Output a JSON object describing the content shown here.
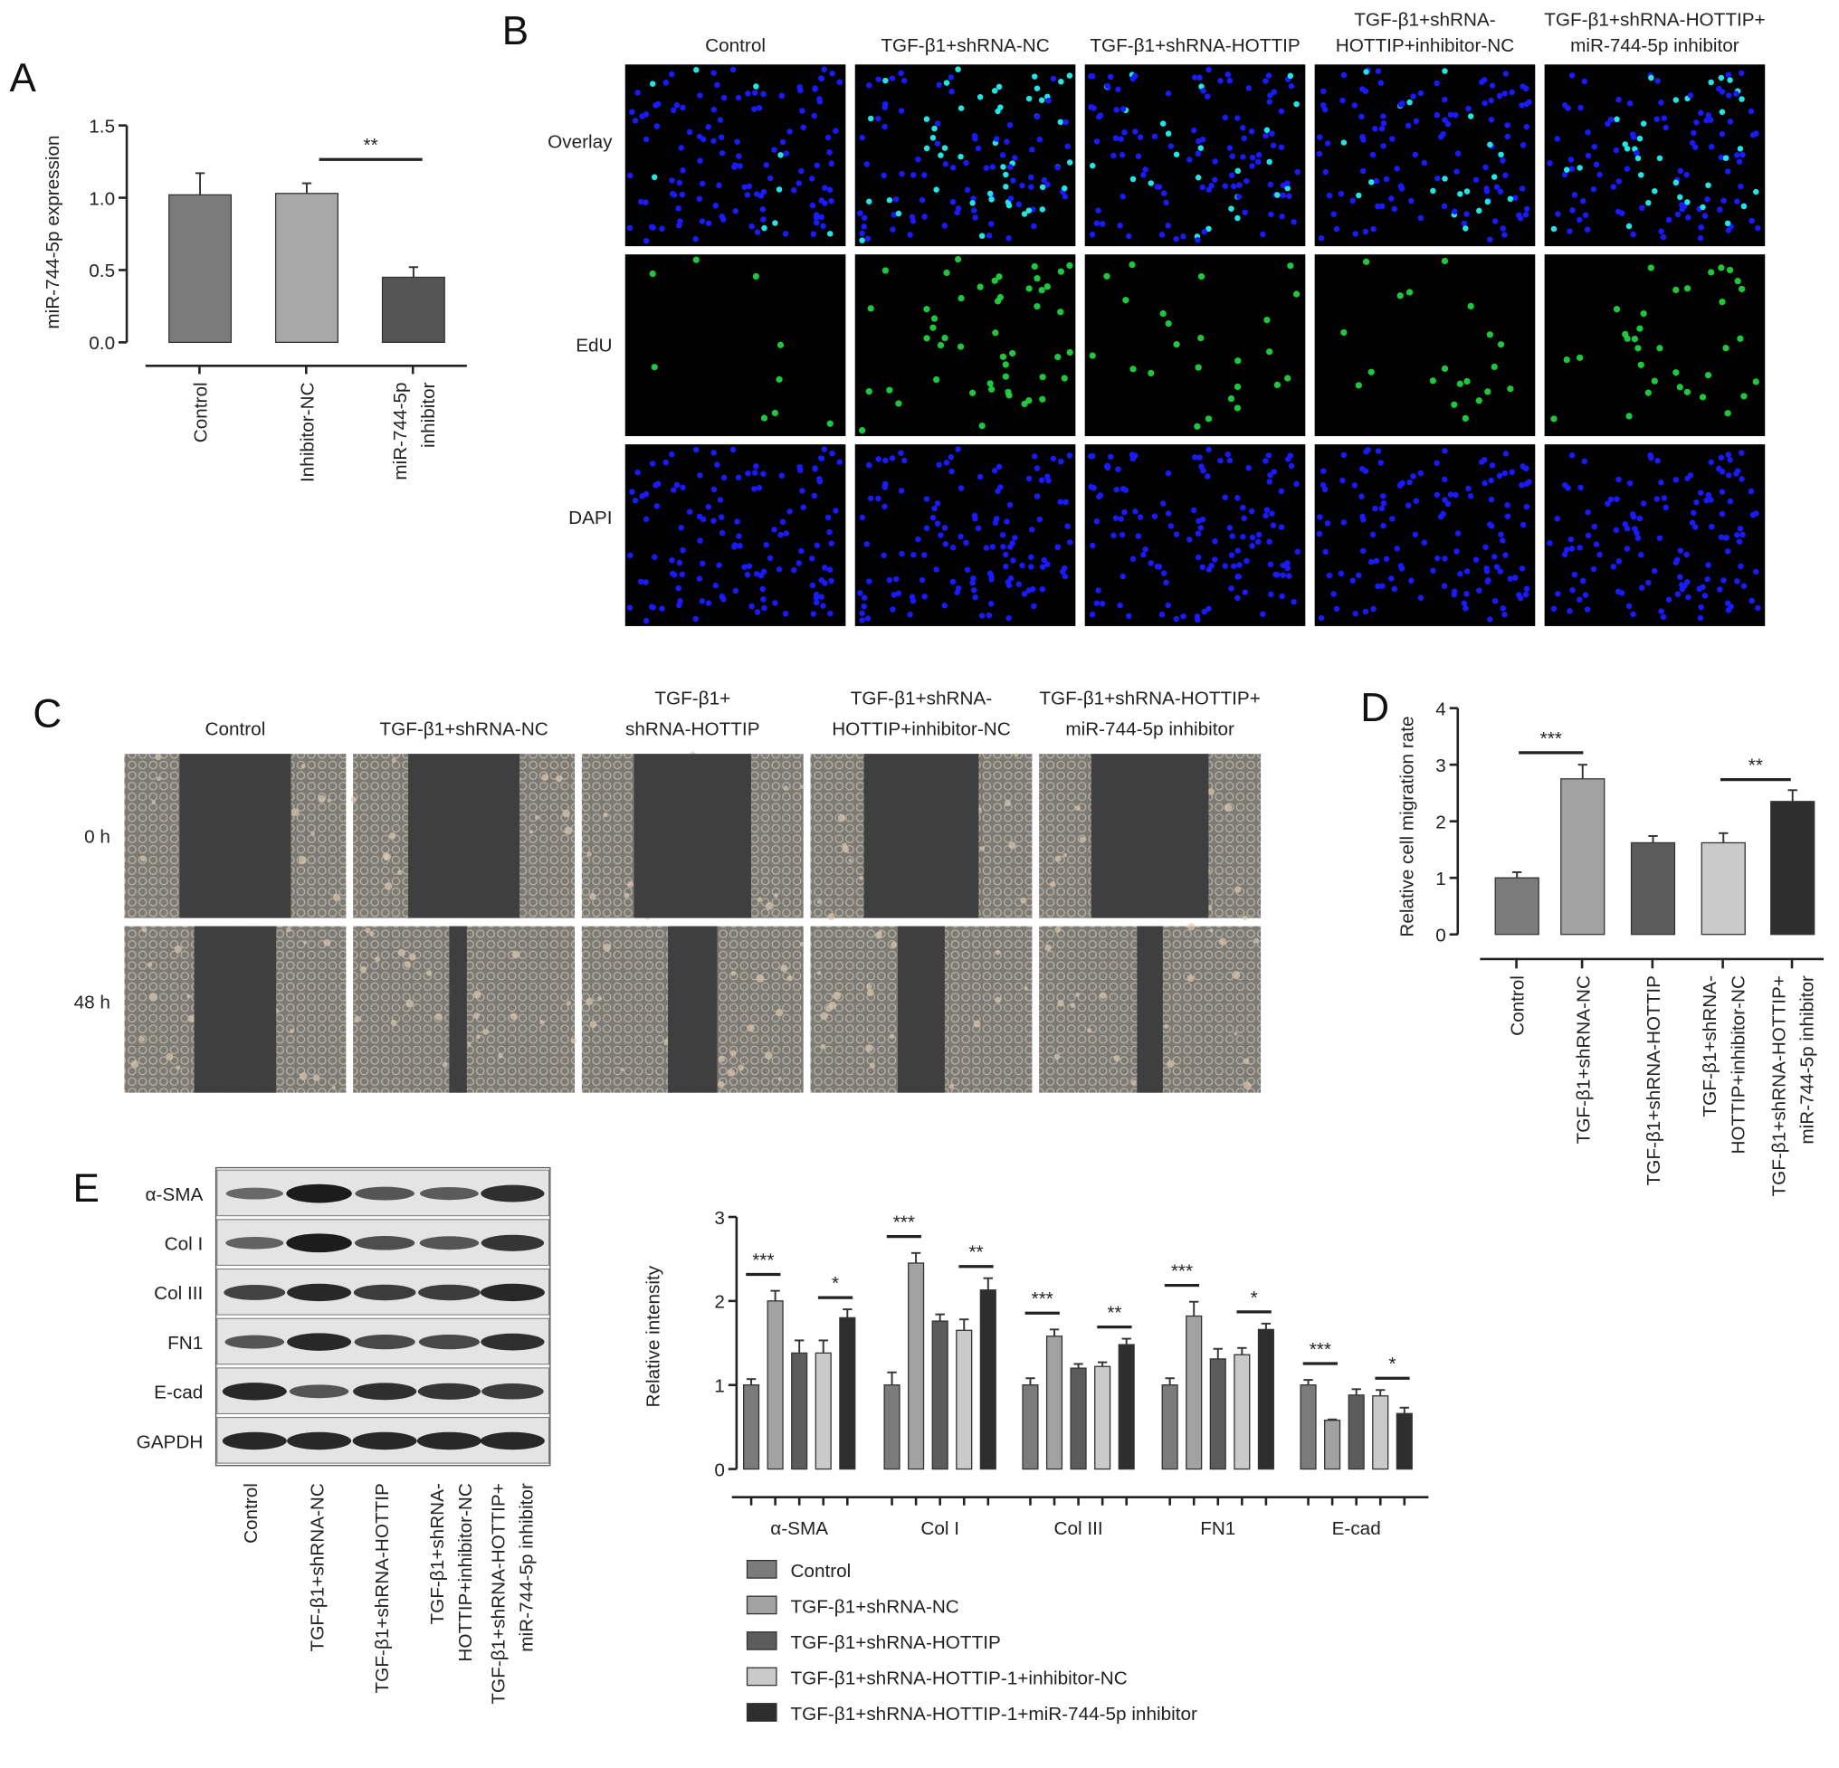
{
  "panel_labels": {
    "a": "A",
    "b": "B",
    "c": "C",
    "d": "D",
    "e": "E"
  },
  "panel_b": {
    "columns": [
      [
        "Control"
      ],
      [
        "TGF-β1+shRNA-NC"
      ],
      [
        "TGF-β1+shRNA-HOTTIP"
      ],
      [
        "TGF-β1+shRNA-",
        "HOTTIP+inhibitor-NC"
      ],
      [
        "TGF-β1+shRNA-HOTTIP+",
        "miR-744-5p inhibitor"
      ]
    ],
    "rows": [
      "Overlay",
      "EdU",
      "DAPI"
    ]
  },
  "panel_c": {
    "columns": [
      [
        "Control"
      ],
      [
        "TGF-β1+shRNA-NC"
      ],
      [
        "TGF-β1+",
        "shRNA-HOTTIP"
      ],
      [
        "TGF-β1+shRNA-",
        "HOTTIP+inhibitor-NC"
      ],
      [
        "TGF-β1+shRNA-HOTTIP+",
        "miR-744-5p inhibitor"
      ]
    ],
    "rows": [
      "0 h",
      "48 h"
    ]
  },
  "panel_e_blot": {
    "rows": [
      "α-SMA",
      "Col I",
      "Col III",
      "FN1",
      "E-cad",
      "GAPDH"
    ],
    "lanes": [
      [
        "Control"
      ],
      [
        "TGF-β1+shRNA-NC"
      ],
      [
        "TGF-β1+shRNA-HOTTIP"
      ],
      [
        "TGF-β1+shRNA-",
        "HOTTIP+inhibitor-NC"
      ],
      [
        "TGF-β1+shRNA-HOTTIP+",
        "miR-744-5p inhibitor"
      ]
    ]
  },
  "colors": {
    "control": "#7b7b7b",
    "shrna_nc": "#a2a2a2",
    "hottip": "#5c5c5c",
    "inhibitor_nc": "#cacaca",
    "mir_inhibitor": "#2e2e2e",
    "dapi": "#1a1aff",
    "edu": "#22dd44"
  },
  "chart_data": [
    {
      "type": "bar",
      "panel": "A",
      "categories": [
        [
          "Control"
        ],
        [
          "Inhibitor-NC"
        ],
        [
          "miR-744-5p",
          "inhibitor"
        ]
      ],
      "values": [
        1.02,
        1.03,
        0.45
      ],
      "errors": [
        0.15,
        0.07,
        0.07
      ],
      "ylabel": "miR-744-5p expression",
      "ylim": [
        0,
        1.5
      ],
      "yticks": [
        "0.0",
        "0.5",
        "1.0",
        "1.5"
      ],
      "significance": [
        {
          "from": 1,
          "to": 2,
          "label": "**"
        }
      ]
    },
    {
      "type": "bar",
      "panel": "D",
      "categories": [
        [
          "Control"
        ],
        [
          "TGF-β1+shRNA-NC"
        ],
        [
          "TGF-β1+shRNA-HOTTIP"
        ],
        [
          "TGF-β1+shRNA-",
          "HOTTIP+inhibitor-NC"
        ],
        [
          "TGF-β1+shRNA-HOTTIP+",
          "miR-744-5p inhibitor"
        ]
      ],
      "values": [
        1.0,
        2.75,
        1.62,
        1.62,
        2.35
      ],
      "errors": [
        0.1,
        0.25,
        0.12,
        0.17,
        0.2
      ],
      "ylabel": "Relative cell migration rate",
      "ylim": [
        0,
        4
      ],
      "yticks": [
        "0",
        "1",
        "2",
        "3",
        "4"
      ],
      "significance": [
        {
          "from": 0,
          "to": 1,
          "label": "***"
        },
        {
          "from": 3,
          "to": 4,
          "label": "**"
        }
      ]
    },
    {
      "type": "bar",
      "panel": "E",
      "categories": [
        "α-SMA",
        "Col I",
        "Col III",
        "FN1",
        "E-cad"
      ],
      "ylabel": "Relative intensity",
      "ylim": [
        0,
        3
      ],
      "yticks": [
        "0",
        "1",
        "2",
        "3"
      ],
      "legend_position": "bottom",
      "series": [
        {
          "name": "Control",
          "values": [
            1.0,
            1.0,
            1.0,
            1.0,
            1.0
          ],
          "errors": [
            0.07,
            0.15,
            0.08,
            0.08,
            0.06
          ]
        },
        {
          "name": "TGF-β1+shRNA-NC",
          "values": [
            2.0,
            2.45,
            1.58,
            1.82,
            0.58
          ],
          "errors": [
            0.12,
            0.12,
            0.08,
            0.17,
            0.01
          ]
        },
        {
          "name": "TGF-β1+shRNA-HOTTIP",
          "values": [
            1.38,
            1.76,
            1.2,
            1.31,
            0.88
          ],
          "errors": [
            0.15,
            0.08,
            0.05,
            0.12,
            0.07
          ]
        },
        {
          "name": "TGF-β1+shRNA-HOTTIP-1+inhibitor-NC",
          "values": [
            1.38,
            1.65,
            1.22,
            1.36,
            0.87
          ],
          "errors": [
            0.15,
            0.13,
            0.05,
            0.08,
            0.07
          ]
        },
        {
          "name": "TGF-β1+shRNA-HOTTIP-1+miR-744-5p inhibitor",
          "values": [
            1.8,
            2.13,
            1.48,
            1.66,
            0.66
          ],
          "errors": [
            0.1,
            0.14,
            0.07,
            0.07,
            0.07
          ]
        }
      ],
      "significance": [
        [
          {
            "from": 0,
            "to": 1,
            "label": "***"
          },
          {
            "from": 3,
            "to": 4,
            "label": "*"
          }
        ],
        [
          {
            "from": 0,
            "to": 1,
            "label": "***"
          },
          {
            "from": 3,
            "to": 4,
            "label": "**"
          }
        ],
        [
          {
            "from": 0,
            "to": 1,
            "label": "***"
          },
          {
            "from": 3,
            "to": 4,
            "label": "**"
          }
        ],
        [
          {
            "from": 0,
            "to": 1,
            "label": "***"
          },
          {
            "from": 3,
            "to": 4,
            "label": "*"
          }
        ],
        [
          {
            "from": 0,
            "to": 1,
            "label": "***"
          },
          {
            "from": 3,
            "to": 4,
            "label": "*"
          }
        ]
      ]
    }
  ]
}
